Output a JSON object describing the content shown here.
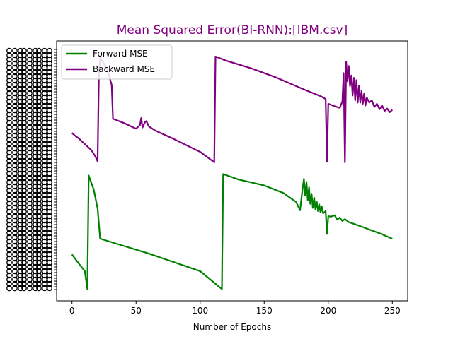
{
  "chart_data": {
    "type": "line",
    "title": "Mean Squared Error(BI-RNN):[IBM.csv]",
    "xlabel": "Number of Epochs",
    "ylabel": "",
    "xlim": [
      -12,
      262
    ],
    "ylim": [
      0,
      1
    ],
    "x_ticks": [
      0,
      50,
      100,
      150,
      200,
      250
    ],
    "y_tick_labels_legible": false,
    "legend": "top-left",
    "grid": false,
    "colors": {
      "title": "#800080",
      "forward": "#008000",
      "backward": "#800080"
    },
    "series": [
      {
        "name": "Forward MSE",
        "color": "#008000",
        "points": [
          [
            0,
            0.148
          ],
          [
            5,
            0.112
          ],
          [
            10,
            0.078
          ],
          [
            12,
            0.002
          ],
          [
            13,
            0.482
          ],
          [
            15,
            0.452
          ],
          [
            17,
            0.422
          ],
          [
            20,
            0.342
          ],
          [
            22,
            0.215
          ],
          [
            40,
            0.185
          ],
          [
            60,
            0.152
          ],
          [
            80,
            0.115
          ],
          [
            100,
            0.078
          ],
          [
            117,
            0.002
          ],
          [
            118,
            0.488
          ],
          [
            130,
            0.465
          ],
          [
            150,
            0.44
          ],
          [
            165,
            0.408
          ],
          [
            175,
            0.37
          ],
          [
            178,
            0.335
          ],
          [
            180,
            0.428
          ],
          [
            181,
            0.468
          ],
          [
            182,
            0.398
          ],
          [
            183,
            0.455
          ],
          [
            184,
            0.378
          ],
          [
            185,
            0.432
          ],
          [
            186,
            0.362
          ],
          [
            187,
            0.405
          ],
          [
            188,
            0.345
          ],
          [
            189,
            0.388
          ],
          [
            190,
            0.338
          ],
          [
            191,
            0.372
          ],
          [
            192,
            0.332
          ],
          [
            193,
            0.36
          ],
          [
            194,
            0.325
          ],
          [
            195,
            0.35
          ],
          [
            196,
            0.322
          ],
          [
            198,
            0.332
          ],
          [
            199,
            0.235
          ],
          [
            200,
            0.31
          ],
          [
            202,
            0.308
          ],
          [
            205,
            0.314
          ],
          [
            207,
            0.296
          ],
          [
            209,
            0.304
          ],
          [
            211,
            0.29
          ],
          [
            213,
            0.298
          ],
          [
            216,
            0.285
          ],
          [
            220,
            0.278
          ],
          [
            230,
            0.258
          ],
          [
            240,
            0.238
          ],
          [
            250,
            0.215
          ]
        ]
      },
      {
        "name": "Backward MSE",
        "color": "#800080",
        "points": [
          [
            0,
            0.662
          ],
          [
            2,
            0.652
          ],
          [
            5,
            0.64
          ],
          [
            10,
            0.615
          ],
          [
            15,
            0.59
          ],
          [
            18,
            0.565
          ],
          [
            20,
            0.542
          ],
          [
            21,
            0.905
          ],
          [
            22,
            0.98
          ],
          [
            25,
            0.955
          ],
          [
            28,
            0.92
          ],
          [
            31,
            0.865
          ],
          [
            32,
            0.722
          ],
          [
            40,
            0.705
          ],
          [
            50,
            0.68
          ],
          [
            53,
            0.695
          ],
          [
            54,
            0.725
          ],
          [
            55,
            0.685
          ],
          [
            57,
            0.708
          ],
          [
            58,
            0.712
          ],
          [
            60,
            0.69
          ],
          [
            65,
            0.672
          ],
          [
            80,
            0.635
          ],
          [
            95,
            0.595
          ],
          [
            100,
            0.582
          ],
          [
            111,
            0.538
          ],
          [
            112,
            0.985
          ],
          [
            120,
            0.968
          ],
          [
            140,
            0.935
          ],
          [
            160,
            0.895
          ],
          [
            180,
            0.848
          ],
          [
            195,
            0.815
          ],
          [
            198,
            0.805
          ],
          [
            199,
            0.54
          ],
          [
            200,
            0.785
          ],
          [
            205,
            0.775
          ],
          [
            209,
            0.768
          ],
          [
            211,
            0.795
          ],
          [
            212,
            0.915
          ],
          [
            213,
            0.538
          ],
          [
            214,
            0.962
          ],
          [
            215,
            0.88
          ],
          [
            216,
            0.945
          ],
          [
            217,
            0.86
          ],
          [
            218,
            0.905
          ],
          [
            219,
            0.82
          ],
          [
            220,
            0.895
          ],
          [
            221,
            0.8
          ],
          [
            222,
            0.885
          ],
          [
            223,
            0.79
          ],
          [
            224,
            0.862
          ],
          [
            225,
            0.79
          ],
          [
            226,
            0.84
          ],
          [
            227,
            0.785
          ],
          [
            228,
            0.828
          ],
          [
            229,
            0.778
          ],
          [
            230,
            0.812
          ],
          [
            232,
            0.79
          ],
          [
            234,
            0.8
          ],
          [
            236,
            0.772
          ],
          [
            238,
            0.785
          ],
          [
            240,
            0.762
          ],
          [
            242,
            0.778
          ],
          [
            244,
            0.755
          ],
          [
            246,
            0.765
          ],
          [
            248,
            0.75
          ],
          [
            250,
            0.76
          ]
        ]
      }
    ]
  }
}
